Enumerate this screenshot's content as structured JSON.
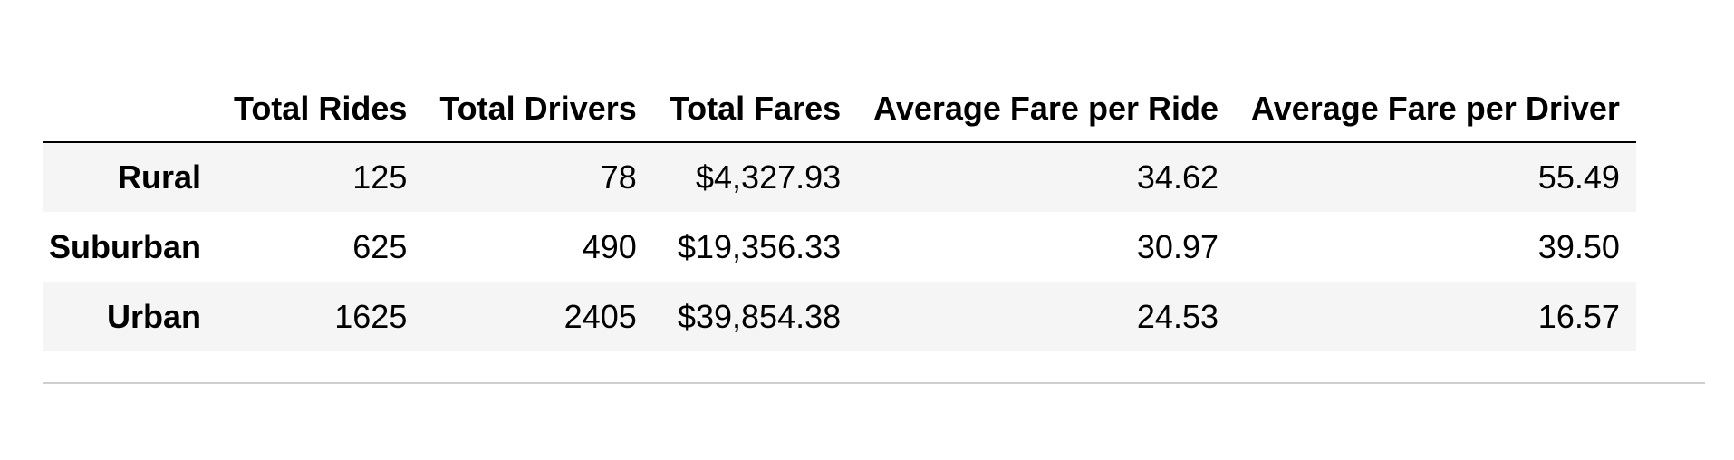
{
  "table": {
    "index_header": "",
    "columns": [
      "Total Rides",
      "Total Drivers",
      "Total Fares",
      "Average Fare per Ride",
      "Average Fare per Driver"
    ],
    "rows": [
      {
        "label": "Rural",
        "cells": [
          "125",
          "78",
          "$4,327.93",
          "34.62",
          "55.49"
        ]
      },
      {
        "label": "Suburban",
        "cells": [
          "625",
          "490",
          "$19,356.33",
          "30.97",
          "39.50"
        ]
      },
      {
        "label": "Urban",
        "cells": [
          "1625",
          "2405",
          "$39,854.38",
          "24.53",
          "16.57"
        ]
      }
    ]
  }
}
